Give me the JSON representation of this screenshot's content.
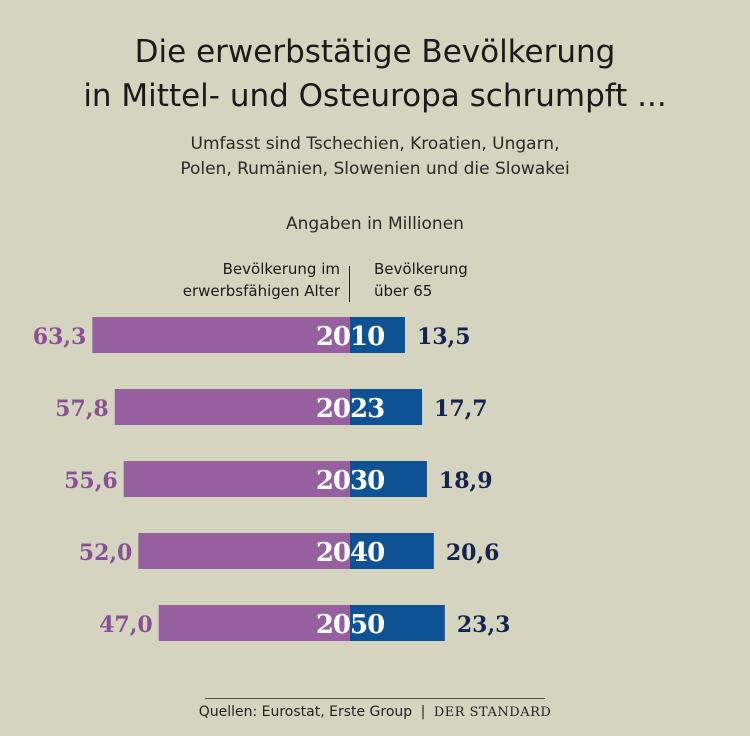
{
  "header": {
    "title_line1": "Die erwerbstätige Bevölkerung",
    "title_line2": "in Mittel- und Osteuropa schrumpft ...",
    "subtitle_line1": "Umfasst sind Tschechien, Kroatien, Ungarn,",
    "subtitle_line2": "Polen, Rumänien, Slowenien und die Slowakei",
    "unit": "Angaben in Millionen"
  },
  "legend": {
    "left_line1": "Bevölkerung im",
    "left_line2": "erwerbsfähigen Alter",
    "right_line1": "Bevölkerung",
    "right_line2": "über 65"
  },
  "footer": {
    "source": "Quellen: Eurostat, Erste Group",
    "separator": "|",
    "brand": "DER STANDARD"
  },
  "colors": {
    "background": "#d5d4be",
    "working_age": "#955fa0",
    "over_65": "#0d5295",
    "working_age_label": "#8a4f96",
    "over_65_label": "#14234f",
    "year_label": "#ffffff"
  },
  "chart_data": {
    "type": "bar",
    "orientation": "horizontal-diverging",
    "categories": [
      "2010",
      "2023",
      "2030",
      "2040",
      "2050"
    ],
    "series": [
      {
        "name": "Bevölkerung im erwerbsfähigen Alter",
        "values": [
          63.3,
          57.8,
          55.6,
          52.0,
          47.0
        ],
        "labels": [
          "63,3",
          "57,8",
          "55,6",
          "52,0",
          "47,0"
        ],
        "direction": "left"
      },
      {
        "name": "Bevölkerung über 65",
        "values": [
          13.5,
          17.7,
          18.9,
          20.6,
          23.3
        ],
        "labels": [
          "13,5",
          "17,7",
          "18,9",
          "20,6",
          "23,3"
        ],
        "direction": "right"
      }
    ]
  }
}
